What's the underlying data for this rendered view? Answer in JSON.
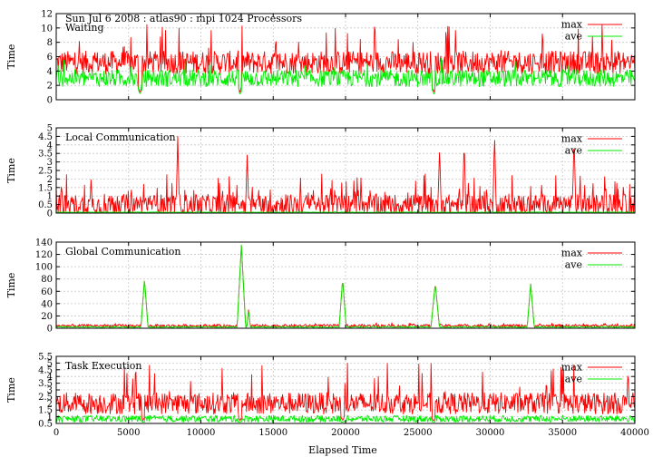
{
  "figure_title": "Sun Jul 6 2008 : atlas90 : mpi 1024 Processors",
  "x_label": "Elapsed Time",
  "x_ticks": [
    0,
    5000,
    10000,
    15000,
    20000,
    25000,
    30000,
    35000,
    40000
  ],
  "legend_labels": [
    "max",
    "ave"
  ],
  "colors": {
    "max": "#ff0000",
    "ave": "#00ee00",
    "grid": "#c8c8c8",
    "axis": "#000000"
  },
  "chart_data": [
    {
      "type": "line",
      "title": "Waiting",
      "ylabel": "Time",
      "xlim": [
        0,
        40000
      ],
      "ylim": [
        0,
        12
      ],
      "yticks": [
        0,
        2,
        4,
        6,
        8,
        10,
        12
      ],
      "grid": true,
      "legend": "top-right",
      "series": [
        {
          "name": "max",
          "base": 5.2,
          "noise": 1.6,
          "spike_prob": 0.06,
          "spike_max": 10.5,
          "clip": [
            0,
            12
          ]
        },
        {
          "name": "ave",
          "base": 3.0,
          "noise": 1.2,
          "spike_prob": 0.02,
          "spike_max": 6.5,
          "clip": [
            0,
            12
          ]
        }
      ],
      "events": [
        {
          "x": 5800,
          "max": 1.0,
          "ave": 0.8
        },
        {
          "x": 12700,
          "max": 1.0,
          "ave": 0.8
        },
        {
          "x": 26100,
          "max": 1.0,
          "ave": 0.8
        },
        {
          "x": 33200,
          "max": 5.0,
          "ave": 3.0
        }
      ]
    },
    {
      "type": "line",
      "title": "Local Communication",
      "ylabel": "Time",
      "xlim": [
        0,
        40000
      ],
      "ylim": [
        0,
        5
      ],
      "yticks": [
        0,
        0.5,
        1,
        1.5,
        2,
        2.5,
        3,
        3.5,
        4,
        4.5,
        5
      ],
      "grid": true,
      "legend": "top-right",
      "series": [
        {
          "name": "max",
          "base": 0.5,
          "noise": 0.6,
          "spike_prob": 0.12,
          "spike_max": 2.3,
          "clip": [
            0,
            5
          ]
        },
        {
          "name": "ave",
          "base": 0.05,
          "noise": 0.02,
          "spike_prob": 0,
          "spike_max": 0.1,
          "clip": [
            0,
            5
          ]
        }
      ],
      "events": [
        {
          "x": 8400,
          "max": 4.5,
          "ave": 0.05
        },
        {
          "x": 13200,
          "max": 3.4,
          "ave": 0.05
        },
        {
          "x": 26500,
          "max": 3.9,
          "ave": 0.05
        },
        {
          "x": 28200,
          "max": 4.3,
          "ave": 0.05
        },
        {
          "x": 30300,
          "max": 4.7,
          "ave": 0.05
        },
        {
          "x": 35800,
          "max": 4.6,
          "ave": 0.05
        }
      ]
    },
    {
      "type": "line",
      "title": "Global Communication",
      "ylabel": "Time",
      "xlim": [
        0,
        40000
      ],
      "ylim": [
        0,
        140
      ],
      "yticks": [
        0,
        20,
        40,
        60,
        80,
        100,
        120,
        140
      ],
      "grid": true,
      "legend": "top-right",
      "series": [
        {
          "name": "max",
          "base": 4,
          "noise": 2.5,
          "spike_prob": 0.03,
          "spike_max": 9,
          "clip": [
            0,
            140
          ]
        },
        {
          "name": "ave",
          "base": 2,
          "noise": 1,
          "spike_prob": 0,
          "spike_max": 3,
          "clip": [
            0,
            140
          ]
        }
      ],
      "events": [
        {
          "x": 6100,
          "max": 80,
          "ave": 80,
          "width": 250
        },
        {
          "x": 12800,
          "max": 135,
          "ave": 135,
          "width": 300
        },
        {
          "x": 13300,
          "max": 33,
          "ave": 30,
          "width": 120
        },
        {
          "x": 19800,
          "max": 80,
          "ave": 80,
          "width": 250
        },
        {
          "x": 26200,
          "max": 73,
          "ave": 72,
          "width": 300
        },
        {
          "x": 32800,
          "max": 72,
          "ave": 72,
          "width": 250
        }
      ]
    },
    {
      "type": "line",
      "title": "Task Execution",
      "ylabel": "Time",
      "xlim": [
        0,
        40000
      ],
      "ylim": [
        0.5,
        5.5
      ],
      "yticks": [
        0.5,
        1,
        1.5,
        2,
        2.5,
        3,
        3.5,
        4,
        4.5,
        5,
        5.5
      ],
      "grid": true,
      "legend": "top-right",
      "series": [
        {
          "name": "max",
          "base": 2.0,
          "noise": 0.8,
          "spike_prob": 0.05,
          "spike_max": 5.0,
          "clip": [
            0.5,
            5.5
          ]
        },
        {
          "name": "ave",
          "base": 0.85,
          "noise": 0.25,
          "spike_prob": 0,
          "spike_max": 1.3,
          "clip": [
            0.5,
            5.5
          ]
        }
      ],
      "events": [
        {
          "x": 6000,
          "max": 0.7,
          "ave": 0.6
        },
        {
          "x": 12700,
          "max": 0.7,
          "ave": 0.6
        },
        {
          "x": 19800,
          "max": 0.7,
          "ave": 0.6
        },
        {
          "x": 26100,
          "max": 0.7,
          "ave": 0.6
        }
      ]
    }
  ]
}
